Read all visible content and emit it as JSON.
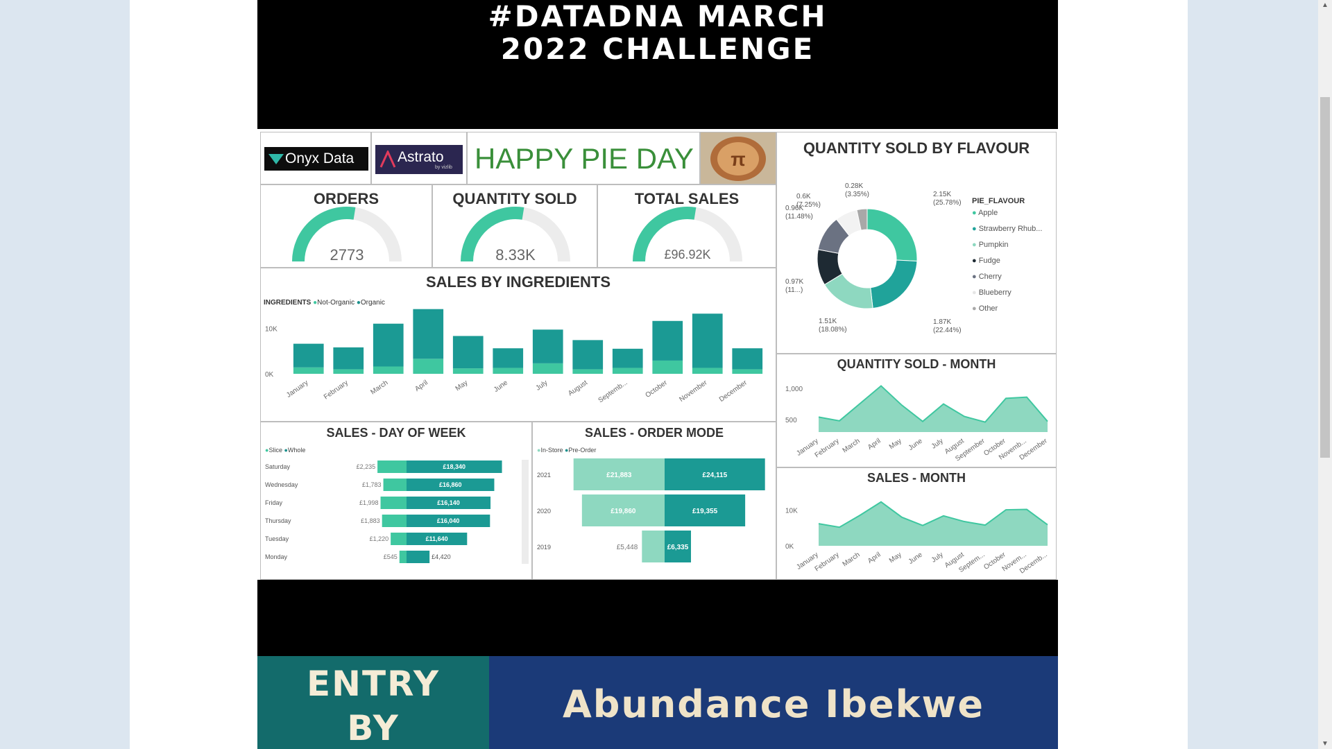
{
  "header": {
    "line1": "#DATADNA MARCH",
    "line2": "2022 CHALLENGE"
  },
  "logos": {
    "onyx": "Onyx Data",
    "astrato": "Astrato",
    "astrato_sub": "by vizlib",
    "happy": "HAPPY PIE DAY"
  },
  "kpis": [
    {
      "title": "ORDERS",
      "value": "2773",
      "fraction": 0.55
    },
    {
      "title": "QUANTITY SOLD",
      "value": "8.33K",
      "fraction": 0.55
    },
    {
      "title": "TOTAL SALES",
      "value": "£96.92K",
      "fraction": 0.55
    }
  ],
  "colors": {
    "dark_teal": "#1b8f8b",
    "light_teal": "#3fc7a0",
    "pale_teal": "#8ed8c0",
    "header_bg": "#000000",
    "footer_left": "#136b6b",
    "footer_right": "#1b3a78"
  },
  "chart_data": [
    {
      "type": "pie",
      "title": "QUANTITY SOLD BY FLAVOUR",
      "legend_title": "PIE_FLAVOUR",
      "legend_position": "right",
      "slices": [
        {
          "name": "Apple",
          "value": 2.15,
          "label": "2.15K (25.78%)",
          "color": "#3fc7a0"
        },
        {
          "name": "Strawberry Rhub...",
          "value": 1.87,
          "label": "1.87K (22.44%)",
          "color": "#20a39a"
        },
        {
          "name": "Pumpkin",
          "value": 1.51,
          "label": "1.51K (18.08%)",
          "color": "#8ed8c0"
        },
        {
          "name": "Fudge",
          "value": 0.97,
          "label": "0.97K (11...)",
          "color": "#1e2a33"
        },
        {
          "name": "Cherry",
          "value": 0.96,
          "label": "0.96K (11.48%)",
          "color": "#6b7282"
        },
        {
          "name": "Blueberry",
          "value": 0.6,
          "label": "0.6K (7.25%)",
          "color": "#f2f2f2"
        },
        {
          "name": "Other",
          "value": 0.28,
          "label": "0.28K (3.35%)",
          "color": "#a8a8a8"
        }
      ]
    },
    {
      "type": "bar",
      "title": "SALES BY INGREDIENTS",
      "legend_title": "INGREDIENTS",
      "legend_position": "top-left",
      "categories": [
        "January",
        "February",
        "March",
        "April",
        "May",
        "June",
        "July",
        "August",
        "Septemb...",
        "October",
        "November",
        "December"
      ],
      "series": [
        {
          "name": "Not-Organic",
          "values": [
            1400,
            1000,
            1600,
            3300,
            1200,
            1300,
            2300,
            1000,
            1300,
            2900,
            1300,
            1000
          ]
        },
        {
          "name": "Organic",
          "values": [
            5200,
            4800,
            9400,
            10900,
            7100,
            4300,
            7400,
            6400,
            4200,
            8700,
            11900,
            4600
          ]
        }
      ],
      "yticks": [
        "10K",
        "0K"
      ],
      "ylim": [
        0,
        14000
      ]
    },
    {
      "type": "bar",
      "title": "SALES - DAY OF WEEK",
      "orientation": "horizontal",
      "legend_position": "top-left",
      "categories": [
        "Saturday",
        "Wednesday",
        "Friday",
        "Thursday",
        "Tuesday",
        "Monday"
      ],
      "series": [
        {
          "name": "Slice",
          "values": [
            2235,
            1783,
            1998,
            1883,
            1220,
            545
          ],
          "labels": [
            "£2,235",
            "£1,783",
            "£1,998",
            "£1,883",
            "£1,220",
            "£545"
          ]
        },
        {
          "name": "Whole",
          "values": [
            18340,
            16860,
            16140,
            16040,
            11640,
            4420
          ],
          "labels": [
            "£18,340",
            "£16,860",
            "£16,140",
            "£16,040",
            "£11,640",
            "£4,420"
          ]
        }
      ]
    },
    {
      "type": "bar",
      "title": "SALES - ORDER MODE",
      "orientation": "horizontal",
      "legend_position": "top-left",
      "categories": [
        "2021",
        "2020",
        "2019"
      ],
      "series": [
        {
          "name": "In-Store",
          "values": [
            21883,
            19860,
            5448
          ],
          "labels": [
            "£21,883",
            "£19,860",
            "£5,448"
          ]
        },
        {
          "name": "Pre-Order",
          "values": [
            24115,
            19355,
            6335
          ],
          "labels": [
            "£24,115",
            "£19,355",
            "£6,335"
          ]
        }
      ]
    },
    {
      "type": "area",
      "title": "QUANTITY SOLD - MONTH",
      "x": [
        "January",
        "February",
        "March",
        "April",
        "May",
        "June",
        "July",
        "August",
        "September",
        "October",
        "Novemb...",
        "December"
      ],
      "values": [
        540,
        480,
        760,
        1040,
        730,
        470,
        750,
        550,
        460,
        840,
        860,
        470
      ],
      "yticks": [
        "1,000",
        "500"
      ],
      "ylim": [
        300,
        1100
      ]
    },
    {
      "type": "area",
      "title": "SALES - MONTH",
      "x": [
        "January",
        "February",
        "March",
        "April",
        "May",
        "June",
        "July",
        "August",
        "Septem...",
        "October",
        "Novem...",
        "Decemb..."
      ],
      "values": [
        6200,
        5200,
        8600,
        12300,
        8000,
        5700,
        8400,
        6800,
        5800,
        10100,
        10200,
        5900
      ],
      "yticks": [
        "10K",
        "0K"
      ],
      "ylim": [
        0,
        14000
      ]
    }
  ],
  "footer": {
    "entry_line1": "ENTRY",
    "entry_line2": "BY",
    "author": "Abundance Ibekwe"
  }
}
